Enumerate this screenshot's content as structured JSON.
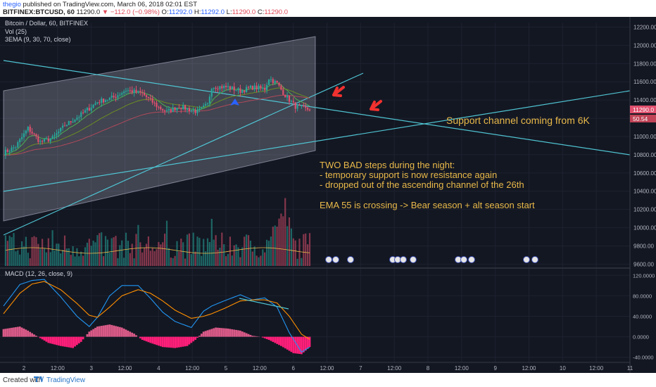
{
  "header": {
    "author": "thegio",
    "published_text": "published on TradingView.com, March 06, 2018 02:01 EST",
    "symbol_line": "BITFINEX:BTCUSD, 60",
    "last_price": "11290.0",
    "change": "−112.0 (−0.98%)",
    "ohlc": {
      "o": "11292.0",
      "h": "11292.0",
      "l": "11290.0",
      "c": "11290.0"
    }
  },
  "footer": {
    "created_with": "Created with",
    "brand": "TradingView"
  },
  "colors": {
    "background": "#131722",
    "up": "#26a69a",
    "down": "#e0506e",
    "accent": "#2962ff",
    "annotation": "#e9b949",
    "trendline": "#4fc3d1",
    "channel": "#e6e6fa"
  },
  "chart_data": {
    "type": "candlestick",
    "title": "Bitcoin / Dollar, 60, BITFINEX",
    "x_labels": [
      "2",
      "12:00",
      "3",
      "12:00",
      "4",
      "12:00",
      "5",
      "12:00",
      "6",
      "12:00",
      "7",
      "12:00",
      "8",
      "12:00",
      "9",
      "12:00",
      "10",
      "12:00",
      "11"
    ],
    "price_axis": {
      "ticks": [
        9600,
        9800,
        10000,
        10200,
        10400,
        10600,
        10800,
        11000,
        11200,
        11400,
        11600,
        11800,
        12000,
        12200
      ],
      "ylim": [
        9580,
        12250
      ]
    },
    "last_price_label": "11290.0",
    "volume_label": "50.54",
    "indicators": [
      "Vol (25)",
      "3EMA (9, 30, 70, close)"
    ],
    "price_anchors": [
      [
        0,
        10820
      ],
      [
        6,
        10890
      ],
      [
        12,
        11090
      ],
      [
        18,
        10940
      ],
      [
        24,
        10980
      ],
      [
        30,
        11120
      ],
      [
        38,
        11240
      ],
      [
        46,
        11380
      ],
      [
        54,
        11430
      ],
      [
        60,
        11510
      ],
      [
        68,
        11470
      ],
      [
        76,
        11320
      ],
      [
        80,
        11270
      ],
      [
        86,
        11330
      ],
      [
        95,
        11270
      ],
      [
        100,
        11350
      ],
      [
        102,
        11550
      ],
      [
        110,
        11540
      ],
      [
        116,
        11500
      ],
      [
        122,
        11540
      ],
      [
        128,
        11520
      ],
      [
        130,
        11640
      ],
      [
        134,
        11580
      ],
      [
        138,
        11450
      ],
      [
        143,
        11330
      ],
      [
        148,
        11300
      ]
    ],
    "annotations": [
      {
        "text": "Support channel coming from 6K"
      },
      {
        "lines": [
          "TWO BAD steps during the night:",
          "- temporary support is now resistance again",
          "- dropped out of the ascending channel of the 26th"
        ]
      },
      {
        "text": "EMA 55 is crossing -> Bear season + alt season start"
      }
    ],
    "macd": {
      "label": "MACD (12, 26, close, 9)",
      "ticks": [
        "120.0000",
        "80.0000",
        "40.0000",
        "0.0000",
        "-40.0000"
      ],
      "ylim": [
        -50,
        130
      ],
      "macd_anchors": [
        [
          0,
          60
        ],
        [
          8,
          102
        ],
        [
          14,
          110
        ],
        [
          20,
          112
        ],
        [
          28,
          78
        ],
        [
          36,
          40
        ],
        [
          42,
          20
        ],
        [
          46,
          38
        ],
        [
          52,
          80
        ],
        [
          58,
          100
        ],
        [
          66,
          100
        ],
        [
          72,
          75
        ],
        [
          78,
          48
        ],
        [
          84,
          30
        ],
        [
          92,
          18
        ],
        [
          98,
          50
        ],
        [
          102,
          60
        ],
        [
          108,
          70
        ],
        [
          116,
          82
        ],
        [
          122,
          72
        ],
        [
          128,
          76
        ],
        [
          134,
          58
        ],
        [
          140,
          8
        ],
        [
          146,
          -30
        ],
        [
          150,
          -20
        ]
      ],
      "signal_anchors": [
        [
          0,
          45
        ],
        [
          8,
          85
        ],
        [
          14,
          103
        ],
        [
          20,
          108
        ],
        [
          28,
          92
        ],
        [
          36,
          65
        ],
        [
          42,
          42
        ],
        [
          46,
          38
        ],
        [
          52,
          58
        ],
        [
          58,
          80
        ],
        [
          66,
          92
        ],
        [
          72,
          85
        ],
        [
          78,
          70
        ],
        [
          84,
          52
        ],
        [
          92,
          36
        ],
        [
          98,
          40
        ],
        [
          102,
          45
        ],
        [
          108,
          55
        ],
        [
          116,
          70
        ],
        [
          122,
          72
        ],
        [
          128,
          72
        ],
        [
          134,
          66
        ],
        [
          140,
          40
        ],
        [
          146,
          5
        ],
        [
          150,
          -5
        ]
      ],
      "hist_anchors": [
        [
          0,
          15
        ],
        [
          8,
          20
        ],
        [
          12,
          12
        ],
        [
          16,
          2
        ],
        [
          22,
          -12
        ],
        [
          28,
          -18
        ],
        [
          34,
          -22
        ],
        [
          38,
          -10
        ],
        [
          42,
          10
        ],
        [
          46,
          20
        ],
        [
          52,
          24
        ],
        [
          58,
          18
        ],
        [
          64,
          6
        ],
        [
          68,
          -6
        ],
        [
          72,
          -12
        ],
        [
          78,
          -20
        ],
        [
          84,
          -22
        ],
        [
          90,
          -18
        ],
        [
          94,
          -6
        ],
        [
          98,
          10
        ],
        [
          104,
          18
        ],
        [
          110,
          16
        ],
        [
          116,
          12
        ],
        [
          122,
          2
        ],
        [
          126,
          0
        ],
        [
          130,
          -6
        ],
        [
          136,
          -18
        ],
        [
          142,
          -32
        ],
        [
          146,
          -34
        ],
        [
          150,
          -20
        ]
      ]
    }
  }
}
